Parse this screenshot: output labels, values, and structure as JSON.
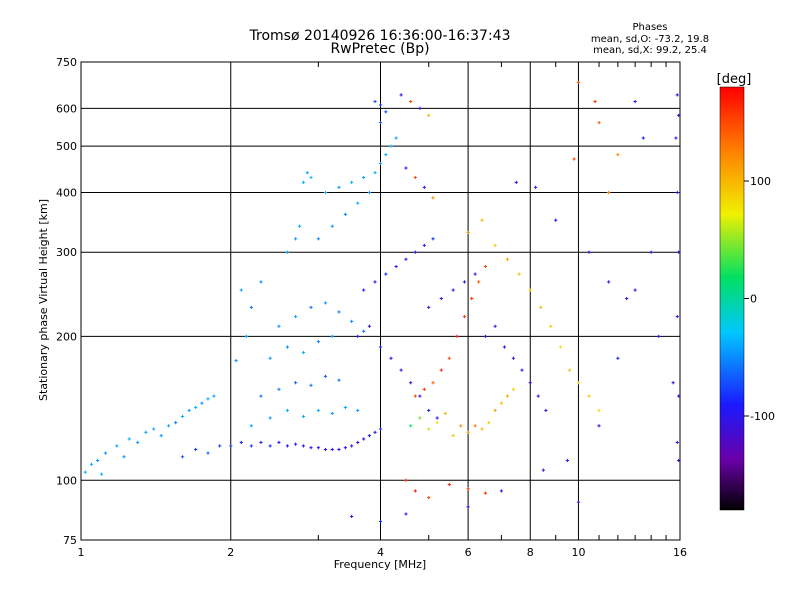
{
  "chart_data": {
    "type": "scatter",
    "title": "Tromsø 20140926 16:36:00-16:37:43",
    "subtitle": "RwPretec (Bp)",
    "stats": {
      "title": "Phases",
      "line1": "mean, sd,O: -73.2, 19.8",
      "line2": "mean, sd,X:  99.2, 25.4"
    },
    "xlabel": "Frequency [MHz]",
    "ylabel": "Stationary phase Virtual Height [km]",
    "x_scale": "log",
    "y_scale": "log",
    "xlim": [
      1,
      16
    ],
    "ylim": [
      75,
      750
    ],
    "x_ticks": [
      1,
      2,
      4,
      6,
      8,
      10,
      16
    ],
    "x_minor_ticks": [
      3,
      5,
      7,
      9,
      11,
      12,
      13,
      14,
      15
    ],
    "y_ticks": [
      75,
      100,
      200,
      300,
      400,
      500,
      600,
      750
    ],
    "grid": true,
    "colorbar": {
      "label": "[deg]",
      "range": [
        -180,
        180
      ],
      "ticks": [
        100,
        0,
        -100
      ],
      "colors": [
        "#000000",
        "#6a00a8",
        "#1a1aff",
        "#00c8ff",
        "#00e060",
        "#f0f000",
        "#ff8000",
        "#ff0000"
      ]
    },
    "series": [
      {
        "values": [
          [
            1.02,
            104,
            -40
          ],
          [
            1.05,
            108,
            -38
          ],
          [
            1.08,
            110,
            -42
          ],
          [
            1.1,
            103,
            -35
          ],
          [
            1.12,
            114,
            -45
          ],
          [
            1.18,
            118,
            -40
          ],
          [
            1.22,
            112,
            -48
          ],
          [
            1.25,
            122,
            -38
          ],
          [
            1.3,
            120,
            -45
          ],
          [
            1.35,
            126,
            -42
          ],
          [
            1.4,
            128,
            -38
          ],
          [
            1.45,
            124,
            -46
          ],
          [
            1.5,
            130,
            -40
          ],
          [
            1.55,
            132,
            -55
          ],
          [
            1.6,
            136,
            -38
          ],
          [
            1.65,
            140,
            -44
          ],
          [
            1.7,
            142,
            -36
          ],
          [
            1.75,
            145,
            -50
          ],
          [
            1.8,
            148,
            -40
          ],
          [
            1.85,
            150,
            -42
          ],
          [
            1.6,
            112,
            -70
          ],
          [
            1.7,
            116,
            -80
          ],
          [
            1.8,
            114,
            -65
          ],
          [
            1.9,
            118,
            -75
          ],
          [
            2.0,
            118,
            -70
          ],
          [
            2.1,
            120,
            -90
          ],
          [
            2.2,
            118,
            -80
          ],
          [
            2.3,
            120,
            -95
          ],
          [
            2.4,
            118,
            -85
          ],
          [
            2.5,
            120,
            -100
          ],
          [
            2.6,
            118,
            -90
          ],
          [
            2.7,
            119,
            -95
          ],
          [
            2.8,
            118,
            -100
          ],
          [
            2.9,
            117,
            -90
          ],
          [
            3.0,
            117,
            -105
          ],
          [
            3.1,
            116,
            -95
          ],
          [
            3.2,
            116,
            -110
          ],
          [
            3.3,
            116,
            -100
          ],
          [
            3.4,
            117,
            -90
          ],
          [
            3.5,
            118,
            -105
          ],
          [
            3.6,
            120,
            -95
          ],
          [
            3.7,
            122,
            -100
          ],
          [
            3.8,
            124,
            -90
          ],
          [
            3.9,
            126,
            -100
          ],
          [
            4.0,
            128,
            -85
          ],
          [
            2.2,
            130,
            -40
          ],
          [
            2.4,
            135,
            -45
          ],
          [
            2.6,
            140,
            -38
          ],
          [
            2.8,
            136,
            -42
          ],
          [
            3.0,
            140,
            -35
          ],
          [
            3.2,
            138,
            -48
          ],
          [
            3.4,
            142,
            -40
          ],
          [
            3.6,
            140,
            -44
          ],
          [
            2.3,
            150,
            -60
          ],
          [
            2.5,
            155,
            -55
          ],
          [
            2.7,
            160,
            -65
          ],
          [
            2.9,
            158,
            -58
          ],
          [
            3.1,
            165,
            -70
          ],
          [
            3.3,
            162,
            -60
          ],
          [
            2.4,
            180,
            -45
          ],
          [
            2.6,
            190,
            -50
          ],
          [
            2.8,
            185,
            -40
          ],
          [
            3.0,
            195,
            -55
          ],
          [
            3.2,
            200,
            -45
          ],
          [
            2.5,
            210,
            -50
          ],
          [
            2.7,
            220,
            -40
          ],
          [
            2.9,
            230,
            -60
          ],
          [
            3.1,
            235,
            -45
          ],
          [
            3.3,
            225,
            -55
          ],
          [
            3.5,
            215,
            -50
          ],
          [
            3.7,
            205,
            -60
          ],
          [
            2.05,
            178,
            -48
          ],
          [
            2.15,
            200,
            -42
          ],
          [
            2.2,
            230,
            -55
          ],
          [
            2.1,
            250,
            -45
          ],
          [
            2.3,
            260,
            -50
          ],
          [
            3.0,
            320,
            -50
          ],
          [
            3.2,
            340,
            -45
          ],
          [
            3.4,
            360,
            -55
          ],
          [
            3.6,
            380,
            -40
          ],
          [
            3.8,
            400,
            -50
          ],
          [
            3.1,
            400,
            -38
          ],
          [
            3.3,
            410,
            -44
          ],
          [
            3.5,
            420,
            -36
          ],
          [
            3.7,
            430,
            -42
          ],
          [
            3.9,
            440,
            -38
          ],
          [
            4.0,
            460,
            -45
          ],
          [
            4.1,
            480,
            -40
          ],
          [
            4.2,
            500,
            -35
          ],
          [
            4.3,
            520,
            -42
          ],
          [
            4.0,
            560,
            -70
          ],
          [
            4.1,
            590,
            -75
          ],
          [
            4.0,
            610,
            -80
          ],
          [
            3.9,
            620,
            -72
          ],
          [
            2.6,
            300,
            -40
          ],
          [
            2.7,
            320,
            -45
          ],
          [
            2.75,
            340,
            -38
          ],
          [
            2.8,
            420,
            -35
          ],
          [
            2.85,
            440,
            -42
          ],
          [
            2.9,
            430,
            -30
          ],
          [
            3.6,
            200,
            -95
          ],
          [
            3.8,
            210,
            -105
          ],
          [
            4.0,
            190,
            -90
          ],
          [
            4.2,
            180,
            -100
          ],
          [
            4.4,
            170,
            -110
          ],
          [
            4.6,
            160,
            -95
          ],
          [
            4.8,
            150,
            -105
          ],
          [
            5.0,
            140,
            -90
          ],
          [
            5.2,
            135,
            -100
          ],
          [
            3.7,
            250,
            -90
          ],
          [
            3.9,
            260,
            -100
          ],
          [
            4.1,
            270,
            -85
          ],
          [
            4.3,
            280,
            -95
          ],
          [
            4.5,
            290,
            -105
          ],
          [
            4.7,
            300,
            -90
          ],
          [
            4.9,
            310,
            -100
          ],
          [
            5.1,
            320,
            -85
          ],
          [
            4.6,
            130,
            20
          ],
          [
            4.8,
            135,
            40
          ],
          [
            5.0,
            128,
            60
          ],
          [
            5.2,
            132,
            80
          ],
          [
            5.4,
            138,
            100
          ],
          [
            5.6,
            124,
            90
          ],
          [
            5.8,
            130,
            120
          ],
          [
            6.0,
            126,
            110
          ],
          [
            6.2,
            130,
            130
          ],
          [
            6.4,
            128,
            100
          ],
          [
            6.6,
            132,
            90
          ],
          [
            6.8,
            140,
            110
          ],
          [
            7.0,
            145,
            95
          ],
          [
            7.2,
            150,
            105
          ],
          [
            7.4,
            155,
            88
          ],
          [
            4.7,
            150,
            150
          ],
          [
            4.9,
            155,
            160
          ],
          [
            5.1,
            160,
            140
          ],
          [
            5.3,
            170,
            165
          ],
          [
            5.5,
            180,
            150
          ],
          [
            5.7,
            200,
            170
          ],
          [
            5.9,
            220,
            155
          ],
          [
            6.1,
            240,
            160
          ],
          [
            6.3,
            260,
            145
          ],
          [
            6.5,
            280,
            150
          ],
          [
            5.0,
            230,
            -100
          ],
          [
            5.3,
            240,
            -110
          ],
          [
            5.6,
            250,
            -90
          ],
          [
            5.9,
            260,
            -105
          ],
          [
            6.2,
            270,
            -95
          ],
          [
            6.5,
            200,
            -110
          ],
          [
            6.8,
            210,
            -100
          ],
          [
            7.1,
            190,
            -95
          ],
          [
            7.4,
            180,
            -105
          ],
          [
            7.7,
            170,
            -90
          ],
          [
            8.0,
            160,
            -100
          ],
          [
            8.3,
            150,
            -95
          ],
          [
            8.6,
            140,
            -110
          ],
          [
            6.0,
            330,
            120
          ],
          [
            6.4,
            350,
            100
          ],
          [
            6.8,
            310,
            90
          ],
          [
            7.2,
            290,
            110
          ],
          [
            7.6,
            270,
            95
          ],
          [
            8.0,
            250,
            85
          ],
          [
            8.4,
            230,
            100
          ],
          [
            8.8,
            210,
            90
          ],
          [
            9.2,
            190,
            80
          ],
          [
            9.6,
            170,
            95
          ],
          [
            10.0,
            160,
            85
          ],
          [
            10.5,
            150,
            90
          ],
          [
            11.0,
            140,
            80
          ],
          [
            4.5,
            100,
            160
          ],
          [
            4.7,
            95,
            170
          ],
          [
            5.0,
            92,
            150
          ],
          [
            5.5,
            98,
            165
          ],
          [
            6.0,
            96,
            150
          ],
          [
            6.5,
            94,
            160
          ],
          [
            4.0,
            82,
            -90
          ],
          [
            3.5,
            84,
            -100
          ],
          [
            4.5,
            85,
            -95
          ],
          [
            4.4,
            640,
            -100
          ],
          [
            4.6,
            620,
            150
          ],
          [
            4.8,
            600,
            -95
          ],
          [
            5.0,
            580,
            100
          ],
          [
            4.5,
            450,
            -90
          ],
          [
            4.7,
            430,
            150
          ],
          [
            4.9,
            410,
            -100
          ],
          [
            5.1,
            390,
            120
          ],
          [
            7.5,
            420,
            -100
          ],
          [
            8.2,
            410,
            -95
          ],
          [
            9.0,
            350,
            -90
          ],
          [
            10.5,
            300,
            -100
          ],
          [
            11.5,
            260,
            -95
          ],
          [
            12.5,
            240,
            -100
          ],
          [
            13.0,
            620,
            -90
          ],
          [
            14.5,
            200,
            -100
          ],
          [
            15.5,
            160,
            -95
          ],
          [
            15.8,
            640,
            -100
          ],
          [
            15.9,
            580,
            -90
          ],
          [
            15.7,
            520,
            -95
          ],
          [
            15.8,
            400,
            -100
          ],
          [
            15.9,
            300,
            -95
          ],
          [
            15.8,
            220,
            -100
          ],
          [
            15.9,
            150,
            -90
          ],
          [
            15.8,
            120,
            -95
          ],
          [
            15.9,
            110,
            -100
          ],
          [
            10.0,
            680,
            150
          ],
          [
            10.8,
            620,
            160
          ],
          [
            11.0,
            560,
            140
          ],
          [
            9.8,
            470,
            150
          ],
          [
            12.0,
            480,
            120
          ],
          [
            11.5,
            400,
            130
          ],
          [
            13.5,
            520,
            -90
          ],
          [
            14.0,
            300,
            -95
          ],
          [
            13.0,
            250,
            -100
          ],
          [
            12.0,
            180,
            -90
          ],
          [
            11.0,
            130,
            -100
          ],
          [
            10.0,
            90,
            -95
          ],
          [
            9.5,
            110,
            -90
          ],
          [
            8.5,
            105,
            -100
          ],
          [
            7.0,
            95,
            -95
          ],
          [
            6.0,
            88,
            -100
          ]
        ]
      }
    ]
  }
}
